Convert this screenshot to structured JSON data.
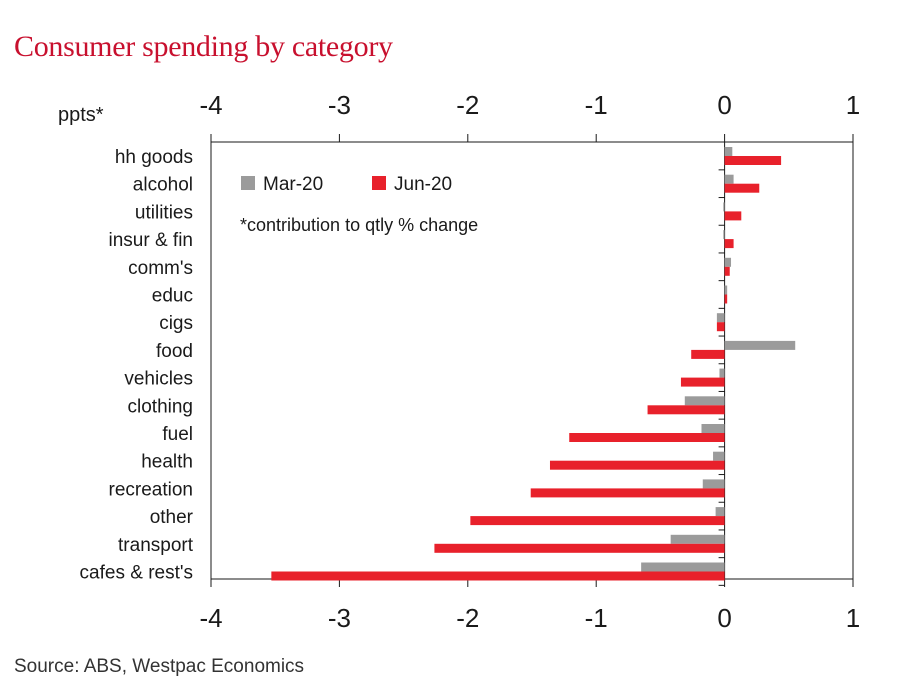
{
  "title": "Consumer spending by category",
  "source": "Source: ABS, Westpac Economics",
  "colors": {
    "title": "#c8102e",
    "mar20": "#9b9b9b",
    "jun20": "#e8212b"
  },
  "chart_data": {
    "type": "bar",
    "orientation": "horizontal",
    "unit_label": "ppts*",
    "note": "*contribution to qtly % change",
    "xlim": [
      -4,
      1
    ],
    "xticks": [
      "-4",
      "-3",
      "-2",
      "-1",
      "0",
      "1"
    ],
    "legend_position": "top-left",
    "grid": false,
    "categories": [
      "hh goods",
      "alcohol",
      "utilities",
      "insur & fin",
      "comm's",
      "educ",
      "cigs",
      "food",
      "vehicles",
      "clothing",
      "fuel",
      "health",
      "recreation",
      "other",
      "transport",
      "cafes & rest's"
    ],
    "series": [
      {
        "name": "Mar-20",
        "color": "#9b9b9b",
        "values": [
          0.06,
          0.07,
          -0.01,
          -0.01,
          0.05,
          0.02,
          -0.06,
          0.55,
          -0.04,
          -0.31,
          -0.18,
          -0.09,
          -0.17,
          -0.07,
          -0.42,
          -0.65
        ]
      },
      {
        "name": "Jun-20",
        "color": "#e8212b",
        "values": [
          0.44,
          0.27,
          0.13,
          0.07,
          0.04,
          0.02,
          -0.06,
          -0.26,
          -0.34,
          -0.6,
          -1.21,
          -1.36,
          -1.51,
          -1.98,
          -2.26,
          -3.53
        ]
      }
    ]
  }
}
